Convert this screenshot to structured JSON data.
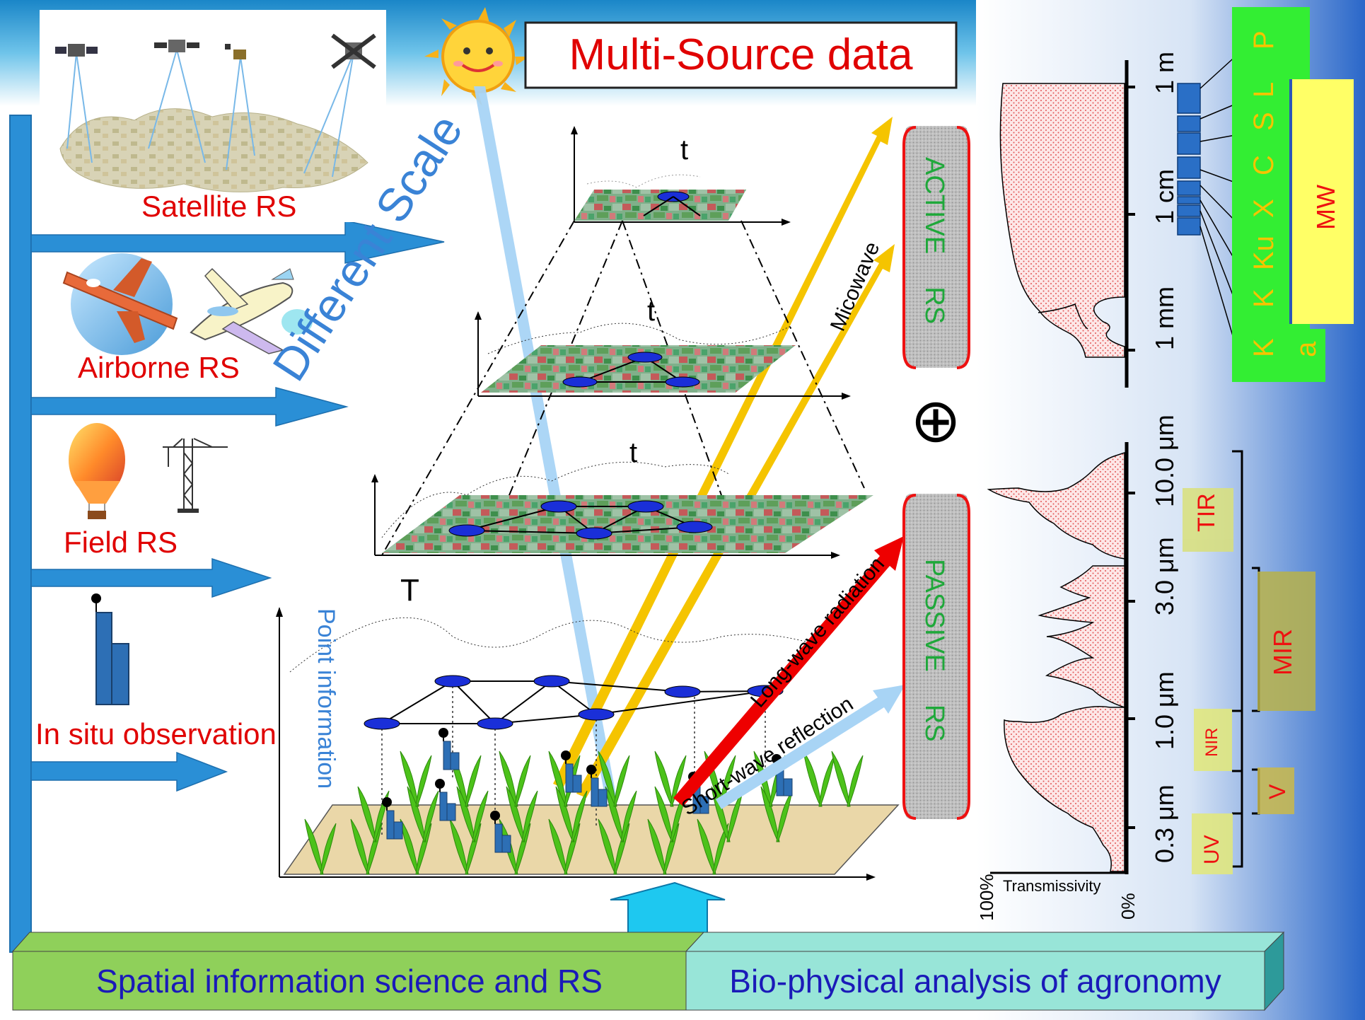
{
  "title": "Multi-Source data",
  "sources": [
    {
      "label": "Satellite RS"
    },
    {
      "label": "Airborne RS"
    },
    {
      "label": "Field RS"
    },
    {
      "label": "In situ observation"
    }
  ],
  "scale_label": "Different Scale",
  "time_labels": {
    "t1": "t",
    "t2": "t",
    "t3": "t",
    "T": "T"
  },
  "point_info_label": "Point information",
  "rays": {
    "microwave": "Micowave",
    "longwave": "Long-wave radiation",
    "shortwave": "Short-wave reflection"
  },
  "active_rs": {
    "line1": "ACTIVE",
    "line2": "RS"
  },
  "passive_rs": {
    "line1": "PASSIVE",
    "line2": "RS"
  },
  "combine_symbol": "⊕",
  "bottom_bar": {
    "left": "Spatial information science and RS",
    "right": "Bio-physical analysis of agronomy"
  },
  "spectrum": {
    "wavelengths": [
      "1 m",
      "1 cm",
      "1 mm",
      "10.0 μm",
      "3.0 μm",
      "1.0 μm",
      "0.3 μm"
    ],
    "bands_mw": [
      "P",
      "L",
      "S",
      "C",
      "X",
      "Ku",
      "K",
      "Ka"
    ],
    "mw_label": "MW",
    "regions": [
      "TIR",
      "MIR",
      "NIR",
      "V",
      "UV"
    ],
    "axis": {
      "left": "100%",
      "right": "0%",
      "label": "Transmissivity"
    }
  },
  "colors": {
    "title_text": "#e00000",
    "label_red": "#e00000",
    "accent_blue": "#2a8fd6",
    "arrow_yellow": "#f5c400",
    "arrow_red": "#ee0000",
    "green_band": "#33ee33",
    "yellow_band": "#ffff66",
    "left_bar": "#a6d96a",
    "right_bar": "#98e5d8"
  }
}
